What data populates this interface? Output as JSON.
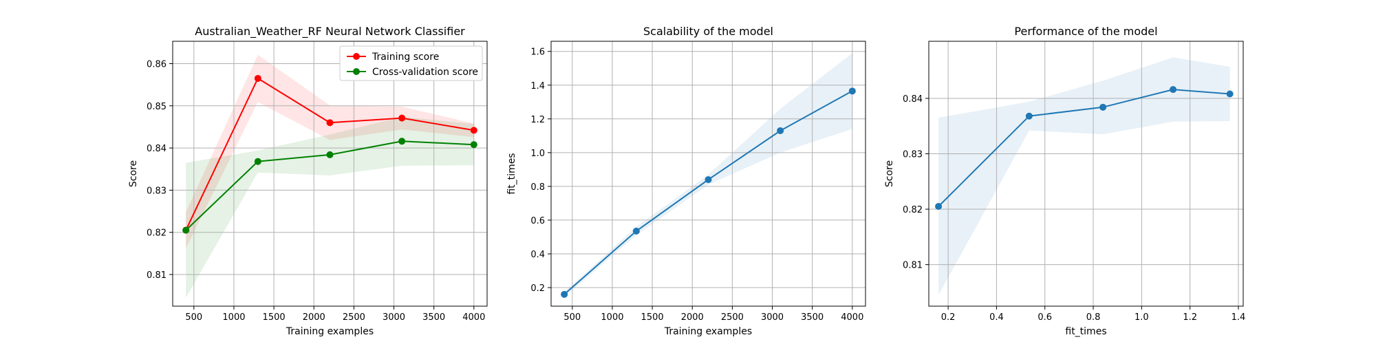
{
  "chart_data": [
    {
      "type": "line",
      "title": "Australian_Weather_RF Neural Network Classifier",
      "xlabel": "Training examples",
      "ylabel": "Score",
      "xlim": [
        235,
        4165
      ],
      "ylim": [
        0.8025,
        0.8653
      ],
      "xticks": [
        500,
        1000,
        1500,
        2000,
        2500,
        3000,
        3500,
        4000
      ],
      "xtick_labels": [
        "500",
        "1000",
        "1500",
        "2000",
        "2500",
        "3000",
        "3500",
        "4000"
      ],
      "yticks": [
        0.81,
        0.82,
        0.83,
        0.84,
        0.85,
        0.86
      ],
      "ytick_labels": [
        "0.81",
        "0.82",
        "0.83",
        "0.84",
        "0.85",
        "0.86"
      ],
      "grid": true,
      "legend": "top-right",
      "series": [
        {
          "name": "Training score",
          "color": "#ff0000",
          "x": [
            400,
            1300,
            2200,
            3100,
            4000
          ],
          "y": [
            0.8205,
            0.8565,
            0.846,
            0.8471,
            0.8442
          ],
          "band_low": [
            0.8162,
            0.8509,
            0.8419,
            0.8444,
            0.8426
          ],
          "band_high": [
            0.8248,
            0.8621,
            0.8501,
            0.8498,
            0.8458
          ]
        },
        {
          "name": "Cross-validation score",
          "color": "#008000",
          "x": [
            400,
            1300,
            2200,
            3100,
            4000
          ],
          "y": [
            0.8205,
            0.8368,
            0.8384,
            0.8416,
            0.8408
          ],
          "band_low": [
            0.8045,
            0.8342,
            0.8335,
            0.8358,
            0.8359
          ],
          "band_high": [
            0.8365,
            0.8394,
            0.8432,
            0.8474,
            0.8457
          ]
        }
      ]
    },
    {
      "type": "line",
      "title": "Scalability of the model",
      "xlabel": "Training examples",
      "ylabel": "fit_times",
      "xlim": [
        235,
        4165
      ],
      "ylim": [
        0.09,
        1.66
      ],
      "xticks": [
        500,
        1000,
        1500,
        2000,
        2500,
        3000,
        3500,
        4000
      ],
      "xtick_labels": [
        "500",
        "1000",
        "1500",
        "2000",
        "2500",
        "3000",
        "3500",
        "4000"
      ],
      "yticks": [
        0.2,
        0.4,
        0.6,
        0.8,
        1.0,
        1.2,
        1.4,
        1.6
      ],
      "ytick_labels": [
        "0.2",
        "0.4",
        "0.6",
        "0.8",
        "1.0",
        "1.2",
        "1.4",
        "1.6"
      ],
      "grid": true,
      "series": [
        {
          "color": "#1f77b4",
          "x": [
            400,
            1300,
            2200,
            3100,
            4000
          ],
          "y": [
            0.16,
            0.535,
            0.84,
            1.13,
            1.365
          ],
          "band_low": [
            0.145,
            0.51,
            0.81,
            1.0,
            1.14
          ],
          "band_high": [
            0.175,
            0.56,
            0.87,
            1.26,
            1.59
          ]
        }
      ]
    },
    {
      "type": "line",
      "title": "Performance of the model",
      "xlabel": "fit_times",
      "ylabel": "Score",
      "xlim": [
        0.12,
        1.42
      ],
      "ylim": [
        0.8025,
        0.8503
      ],
      "xticks": [
        0.2,
        0.4,
        0.6,
        0.8,
        1.0,
        1.2,
        1.4
      ],
      "xtick_labels": [
        "0.2",
        "0.4",
        "0.6",
        "0.8",
        "1.0",
        "1.2",
        "1.4"
      ],
      "yticks": [
        0.81,
        0.82,
        0.83,
        0.84
      ],
      "ytick_labels": [
        "0.81",
        "0.82",
        "0.83",
        "0.84"
      ],
      "grid": true,
      "series": [
        {
          "color": "#1f77b4",
          "x": [
            0.16,
            0.535,
            0.84,
            1.13,
            1.365
          ],
          "y": [
            0.8205,
            0.8368,
            0.8384,
            0.8416,
            0.8408
          ],
          "band_low": [
            0.8045,
            0.8342,
            0.8335,
            0.8358,
            0.8359
          ],
          "band_high": [
            0.8365,
            0.8394,
            0.8432,
            0.8474,
            0.8457
          ]
        }
      ]
    }
  ]
}
